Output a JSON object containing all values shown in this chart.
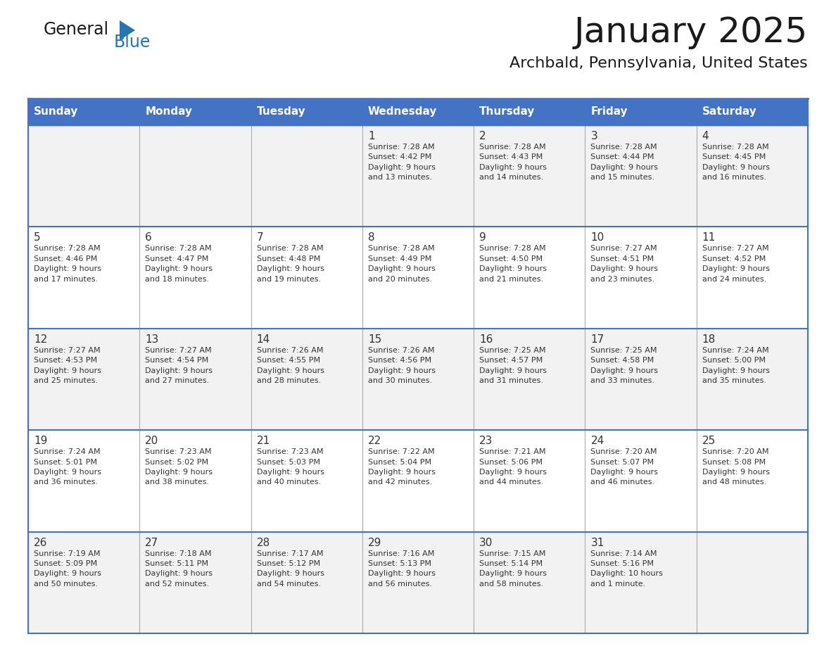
{
  "title": "January 2025",
  "subtitle": "Archbald, Pennsylvania, United States",
  "header_color": "#4472C4",
  "header_text_color": "#FFFFFF",
  "cell_bg_light": "#F2F2F2",
  "cell_bg_white": "#FFFFFF",
  "border_color": "#4472C4",
  "divider_color": "#AAAAAA",
  "text_color": "#333333",
  "days_of_week": [
    "Sunday",
    "Monday",
    "Tuesday",
    "Wednesday",
    "Thursday",
    "Friday",
    "Saturday"
  ],
  "weeks": [
    [
      {
        "day": "",
        "info": ""
      },
      {
        "day": "",
        "info": ""
      },
      {
        "day": "",
        "info": ""
      },
      {
        "day": "1",
        "info": "Sunrise: 7:28 AM\nSunset: 4:42 PM\nDaylight: 9 hours\nand 13 minutes."
      },
      {
        "day": "2",
        "info": "Sunrise: 7:28 AM\nSunset: 4:43 PM\nDaylight: 9 hours\nand 14 minutes."
      },
      {
        "day": "3",
        "info": "Sunrise: 7:28 AM\nSunset: 4:44 PM\nDaylight: 9 hours\nand 15 minutes."
      },
      {
        "day": "4",
        "info": "Sunrise: 7:28 AM\nSunset: 4:45 PM\nDaylight: 9 hours\nand 16 minutes."
      }
    ],
    [
      {
        "day": "5",
        "info": "Sunrise: 7:28 AM\nSunset: 4:46 PM\nDaylight: 9 hours\nand 17 minutes."
      },
      {
        "day": "6",
        "info": "Sunrise: 7:28 AM\nSunset: 4:47 PM\nDaylight: 9 hours\nand 18 minutes."
      },
      {
        "day": "7",
        "info": "Sunrise: 7:28 AM\nSunset: 4:48 PM\nDaylight: 9 hours\nand 19 minutes."
      },
      {
        "day": "8",
        "info": "Sunrise: 7:28 AM\nSunset: 4:49 PM\nDaylight: 9 hours\nand 20 minutes."
      },
      {
        "day": "9",
        "info": "Sunrise: 7:28 AM\nSunset: 4:50 PM\nDaylight: 9 hours\nand 21 minutes."
      },
      {
        "day": "10",
        "info": "Sunrise: 7:27 AM\nSunset: 4:51 PM\nDaylight: 9 hours\nand 23 minutes."
      },
      {
        "day": "11",
        "info": "Sunrise: 7:27 AM\nSunset: 4:52 PM\nDaylight: 9 hours\nand 24 minutes."
      }
    ],
    [
      {
        "day": "12",
        "info": "Sunrise: 7:27 AM\nSunset: 4:53 PM\nDaylight: 9 hours\nand 25 minutes."
      },
      {
        "day": "13",
        "info": "Sunrise: 7:27 AM\nSunset: 4:54 PM\nDaylight: 9 hours\nand 27 minutes."
      },
      {
        "day": "14",
        "info": "Sunrise: 7:26 AM\nSunset: 4:55 PM\nDaylight: 9 hours\nand 28 minutes."
      },
      {
        "day": "15",
        "info": "Sunrise: 7:26 AM\nSunset: 4:56 PM\nDaylight: 9 hours\nand 30 minutes."
      },
      {
        "day": "16",
        "info": "Sunrise: 7:25 AM\nSunset: 4:57 PM\nDaylight: 9 hours\nand 31 minutes."
      },
      {
        "day": "17",
        "info": "Sunrise: 7:25 AM\nSunset: 4:58 PM\nDaylight: 9 hours\nand 33 minutes."
      },
      {
        "day": "18",
        "info": "Sunrise: 7:24 AM\nSunset: 5:00 PM\nDaylight: 9 hours\nand 35 minutes."
      }
    ],
    [
      {
        "day": "19",
        "info": "Sunrise: 7:24 AM\nSunset: 5:01 PM\nDaylight: 9 hours\nand 36 minutes."
      },
      {
        "day": "20",
        "info": "Sunrise: 7:23 AM\nSunset: 5:02 PM\nDaylight: 9 hours\nand 38 minutes."
      },
      {
        "day": "21",
        "info": "Sunrise: 7:23 AM\nSunset: 5:03 PM\nDaylight: 9 hours\nand 40 minutes."
      },
      {
        "day": "22",
        "info": "Sunrise: 7:22 AM\nSunset: 5:04 PM\nDaylight: 9 hours\nand 42 minutes."
      },
      {
        "day": "23",
        "info": "Sunrise: 7:21 AM\nSunset: 5:06 PM\nDaylight: 9 hours\nand 44 minutes."
      },
      {
        "day": "24",
        "info": "Sunrise: 7:20 AM\nSunset: 5:07 PM\nDaylight: 9 hours\nand 46 minutes."
      },
      {
        "day": "25",
        "info": "Sunrise: 7:20 AM\nSunset: 5:08 PM\nDaylight: 9 hours\nand 48 minutes."
      }
    ],
    [
      {
        "day": "26",
        "info": "Sunrise: 7:19 AM\nSunset: 5:09 PM\nDaylight: 9 hours\nand 50 minutes."
      },
      {
        "day": "27",
        "info": "Sunrise: 7:18 AM\nSunset: 5:11 PM\nDaylight: 9 hours\nand 52 minutes."
      },
      {
        "day": "28",
        "info": "Sunrise: 7:17 AM\nSunset: 5:12 PM\nDaylight: 9 hours\nand 54 minutes."
      },
      {
        "day": "29",
        "info": "Sunrise: 7:16 AM\nSunset: 5:13 PM\nDaylight: 9 hours\nand 56 minutes."
      },
      {
        "day": "30",
        "info": "Sunrise: 7:15 AM\nSunset: 5:14 PM\nDaylight: 9 hours\nand 58 minutes."
      },
      {
        "day": "31",
        "info": "Sunrise: 7:14 AM\nSunset: 5:16 PM\nDaylight: 10 hours\nand 1 minute."
      },
      {
        "day": "",
        "info": ""
      }
    ]
  ],
  "logo_color_general": "#1a1a1a",
  "logo_color_blue": "#2475B0",
  "logo_triangle_color": "#2475B0"
}
